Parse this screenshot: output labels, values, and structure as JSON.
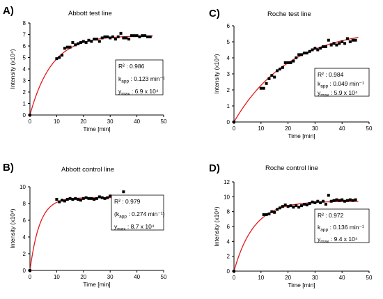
{
  "chart_data": [
    {
      "letter": "A)",
      "title": "Abbott test line",
      "type": "scatter",
      "xlabel": "Time [min]",
      "ylabel": "Intensity (x10⁴)",
      "xlim": [
        0,
        50
      ],
      "ylim": [
        0,
        8
      ],
      "xticks": [
        0,
        10,
        20,
        30,
        40,
        50
      ],
      "yticks": [
        0,
        1,
        2,
        3,
        4,
        5,
        6,
        7,
        8
      ],
      "series": [
        {
          "x": [
            0,
            10,
            11,
            12,
            13,
            14,
            15,
            16,
            17,
            18,
            19,
            20,
            21,
            22,
            23,
            24,
            25,
            26,
            27,
            28,
            29,
            30,
            31,
            32,
            33,
            34,
            35,
            36,
            37,
            38,
            39,
            40,
            41,
            42,
            43,
            44,
            45
          ],
          "y": [
            0,
            4.9,
            5.0,
            5.2,
            5.8,
            5.9,
            5.9,
            6.3,
            6.1,
            6.2,
            6.3,
            6.4,
            6.3,
            6.5,
            6.4,
            6.6,
            6.6,
            6.4,
            6.7,
            6.8,
            6.8,
            6.7,
            6.8,
            6.6,
            6.8,
            7.1,
            6.7,
            6.7,
            6.6,
            6.9,
            6.9,
            6.9,
            6.8,
            6.9,
            6.9,
            6.8,
            6.8
          ]
        }
      ],
      "fit": {
        "ymax": 6.9,
        "k": 0.123
      },
      "stats": [
        "R² : 0.986",
        "kapp : 0.123 min⁻¹",
        "ymax : 6.9 x 10⁴"
      ]
    },
    {
      "letter": "C)",
      "title": "Roche test line",
      "type": "scatter",
      "xlabel": "Time [min]",
      "ylabel": "Intensity (x10⁴)",
      "xlim": [
        0,
        50
      ],
      "ylim": [
        0,
        6
      ],
      "xticks": [
        0,
        10,
        20,
        30,
        40,
        50
      ],
      "yticks": [
        0,
        1,
        2,
        3,
        4,
        5,
        6
      ],
      "series": [
        {
          "x": [
            0,
            10,
            11,
            12,
            13,
            14,
            15,
            16,
            17,
            18,
            19,
            20,
            21,
            22,
            23,
            24,
            25,
            26,
            27,
            28,
            29,
            30,
            31,
            32,
            33,
            34,
            35,
            36,
            37,
            38,
            39,
            40,
            41,
            42,
            43,
            44,
            45
          ],
          "y": [
            0,
            2.1,
            2.1,
            2.4,
            2.7,
            2.9,
            2.8,
            3.2,
            3.3,
            3.4,
            3.7,
            3.7,
            3.7,
            3.8,
            4.0,
            4.2,
            4.2,
            4.3,
            4.3,
            4.4,
            4.5,
            4.6,
            4.5,
            4.6,
            4.7,
            4.7,
            5.1,
            4.8,
            4.9,
            4.8,
            4.9,
            5.0,
            4.9,
            5.2,
            5.0,
            5.1,
            5.1
          ]
        }
      ],
      "fit": {
        "ymax": 5.9,
        "k": 0.049
      },
      "stats": [
        "R² : 0.984",
        "kapp : 0.049 min⁻¹",
        "ymax : 5.9 x 10⁴"
      ]
    },
    {
      "letter": "B)",
      "title": "Abbott control line",
      "type": "scatter",
      "xlabel": "Time [min]",
      "ylabel": "Intensity (x10⁴)",
      "xlim": [
        0,
        50
      ],
      "ylim": [
        0,
        10
      ],
      "xticks": [
        0,
        10,
        20,
        30,
        40,
        50
      ],
      "yticks": [
        0,
        2,
        4,
        6,
        8,
        10
      ],
      "series": [
        {
          "x": [
            0,
            10,
            11,
            12,
            13,
            14,
            15,
            16,
            17,
            18,
            19,
            20,
            21,
            22,
            23,
            24,
            25,
            26,
            27,
            28,
            29,
            30,
            31,
            32,
            33,
            34,
            35,
            36,
            37,
            38,
            39,
            40,
            41,
            42,
            43,
            44,
            45
          ],
          "y": [
            0,
            8.5,
            8.2,
            8.4,
            8.3,
            8.5,
            8.6,
            8.5,
            8.6,
            8.5,
            8.4,
            8.6,
            8.7,
            8.6,
            8.6,
            8.5,
            8.6,
            8.8,
            8.7,
            8.6,
            8.7,
            8.9,
            8.6,
            8.7,
            8.8,
            8.5,
            9.4,
            8.4,
            8.6,
            8.7,
            8.6,
            8.8,
            8.6,
            8.5,
            8.8,
            8.6,
            8.8
          ]
        }
      ],
      "fit": {
        "ymax": 8.7,
        "k": 0.274
      },
      "stats": [
        "R² : 0.979",
        "(kapp : 0.274 min⁻¹)",
        "ymax : 8.7 x 10⁴"
      ]
    },
    {
      "letter": "D)",
      "title": "Roche control line",
      "type": "scatter",
      "xlabel": "Time [min]",
      "ylabel": "Intensity (x10⁴)",
      "xlim": [
        0,
        50
      ],
      "ylim": [
        0,
        12
      ],
      "xticks": [
        0,
        10,
        20,
        30,
        40,
        50
      ],
      "yticks": [
        0,
        2,
        4,
        6,
        8,
        10,
        12
      ],
      "series": [
        {
          "x": [
            0,
            11,
            12,
            13,
            14,
            15,
            16,
            17,
            18,
            19,
            20,
            21,
            22,
            23,
            24,
            25,
            26,
            27,
            28,
            29,
            30,
            31,
            32,
            33,
            34,
            35,
            36,
            37,
            38,
            39,
            40,
            41,
            42,
            43,
            44,
            45
          ],
          "y": [
            0,
            7.6,
            7.6,
            7.7,
            8.0,
            7.9,
            8.3,
            8.5,
            8.7,
            8.9,
            8.7,
            8.8,
            8.6,
            8.8,
            8.6,
            8.8,
            9.0,
            8.9,
            9.1,
            9.3,
            9.2,
            9.4,
            9.2,
            9.4,
            9.0,
            10.2,
            9.4,
            9.5,
            9.6,
            9.5,
            9.6,
            9.4,
            9.5,
            9.6,
            9.5,
            9.6
          ]
        }
      ],
      "fit": {
        "ymax": 9.4,
        "k": 0.136
      },
      "stats": [
        "R² : 0.972",
        "kapp : 0.136 min⁻¹",
        "ymax : 9.4 x 10⁴"
      ]
    }
  ],
  "colors": {
    "points": "#000000",
    "fit": "#e31a1c",
    "axes": "#000000"
  }
}
